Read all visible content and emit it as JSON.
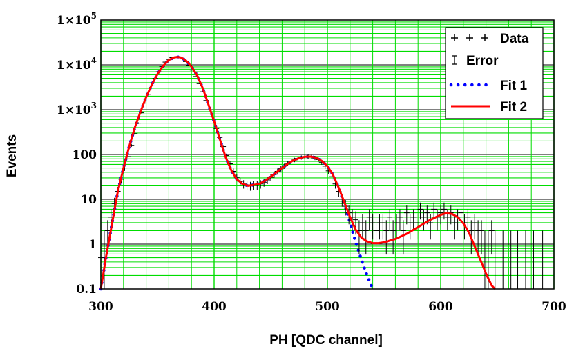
{
  "chart_data": {
    "type": "scatter",
    "title": "",
    "xlabel": "PH [QDC channel]",
    "ylabel": "Events",
    "xlim": [
      300,
      700
    ],
    "ylim": [
      0.1,
      100000
    ],
    "y_scale": "log",
    "grid": true,
    "legend_position": "top-right",
    "x_ticks": [
      "300",
      "400",
      "500",
      "600",
      "700"
    ],
    "y_ticks": [
      {
        "value": 0.1,
        "label": "0.1"
      },
      {
        "value": 1,
        "label": "1"
      },
      {
        "value": 10,
        "label": "10"
      },
      {
        "value": 100,
        "label": "100"
      },
      {
        "value": 1000,
        "label": "1×10",
        "exp": "3"
      },
      {
        "value": 10000,
        "label": "1×10",
        "exp": "4"
      },
      {
        "value": 100000,
        "label": "1×10",
        "exp": "5"
      }
    ],
    "legend": [
      {
        "key": "data",
        "label": "Data"
      },
      {
        "key": "error",
        "label": "Error"
      },
      {
        "key": "fit1",
        "label": "Fit 1"
      },
      {
        "key": "fit2",
        "label": "Fit 2"
      }
    ],
    "colors": {
      "grid": "#00dd00",
      "data": "#000000",
      "fit1": "#0000ff",
      "fit2": "#ff0000"
    },
    "series": [
      {
        "name": "Data",
        "points": [
          [
            300,
            0.5
          ],
          [
            303,
            1.0
          ],
          [
            306,
            2.0
          ],
          [
            309,
            4.0
          ],
          [
            312,
            8.0
          ],
          [
            315,
            15
          ],
          [
            318,
            28
          ],
          [
            321,
            50
          ],
          [
            324,
            90
          ],
          [
            327,
            160
          ],
          [
            330,
            290
          ],
          [
            333,
            500
          ],
          [
            336,
            850
          ],
          [
            339,
            1400
          ],
          [
            342,
            2200
          ],
          [
            345,
            3400
          ],
          [
            348,
            5000
          ],
          [
            351,
            7000
          ],
          [
            354,
            9200
          ],
          [
            357,
            11500
          ],
          [
            360,
            13200
          ],
          [
            363,
            14500
          ],
          [
            366,
            15000
          ],
          [
            369,
            14600
          ],
          [
            372,
            13500
          ],
          [
            375,
            11800
          ],
          [
            378,
            9800
          ],
          [
            381,
            7600
          ],
          [
            384,
            5500
          ],
          [
            387,
            3800
          ],
          [
            390,
            2500
          ],
          [
            393,
            1600
          ],
          [
            396,
            1000
          ],
          [
            399,
            620
          ],
          [
            402,
            380
          ],
          [
            405,
            240
          ],
          [
            408,
            150
          ],
          [
            411,
            95
          ],
          [
            414,
            62
          ],
          [
            417,
            42
          ],
          [
            420,
            31
          ],
          [
            423,
            25
          ],
          [
            426,
            22
          ],
          [
            429,
            21
          ],
          [
            432,
            20
          ],
          [
            435,
            21
          ],
          [
            438,
            21
          ],
          [
            441,
            22
          ],
          [
            444,
            24
          ],
          [
            447,
            27
          ],
          [
            450,
            31
          ],
          [
            453,
            36
          ],
          [
            456,
            42
          ],
          [
            459,
            48
          ],
          [
            462,
            55
          ],
          [
            465,
            63
          ],
          [
            468,
            70
          ],
          [
            471,
            76
          ],
          [
            474,
            82
          ],
          [
            477,
            86
          ],
          [
            480,
            89
          ],
          [
            483,
            90
          ],
          [
            486,
            88
          ],
          [
            489,
            84
          ],
          [
            492,
            77
          ],
          [
            495,
            67
          ],
          [
            498,
            55
          ],
          [
            501,
            43
          ],
          [
            504,
            32
          ],
          [
            507,
            22
          ],
          [
            510,
            15
          ],
          [
            513,
            10
          ],
          [
            516,
            7
          ],
          [
            519,
            5
          ],
          [
            522,
            4
          ],
          [
            525,
            3.5
          ],
          [
            528,
            2
          ],
          [
            531,
            3
          ],
          [
            534,
            2
          ],
          [
            537,
            4
          ],
          [
            540,
            3
          ],
          [
            543,
            2
          ],
          [
            546,
            3
          ],
          [
            549,
            3
          ],
          [
            552,
            2
          ],
          [
            555,
            4
          ],
          [
            558,
            2
          ],
          [
            561,
            3
          ],
          [
            564,
            4
          ],
          [
            567,
            2
          ],
          [
            570,
            5
          ],
          [
            573,
            3
          ],
          [
            576,
            4
          ],
          [
            579,
            3
          ],
          [
            582,
            6
          ],
          [
            585,
            4
          ],
          [
            588,
            5
          ],
          [
            591,
            3
          ],
          [
            594,
            6
          ],
          [
            597,
            4
          ],
          [
            600,
            5
          ],
          [
            603,
            6
          ],
          [
            606,
            4
          ],
          [
            609,
            5
          ],
          [
            612,
            3
          ],
          [
            615,
            4
          ],
          [
            618,
            5
          ],
          [
            621,
            3
          ],
          [
            624,
            4
          ],
          [
            627,
            2
          ],
          [
            630,
            3
          ],
          [
            633,
            2
          ],
          [
            636,
            2
          ],
          [
            639,
            1
          ],
          [
            642,
            1
          ],
          [
            645,
            2
          ],
          [
            648,
            1
          ],
          [
            655,
            1
          ],
          [
            662,
            1
          ],
          [
            668,
            1
          ],
          [
            675,
            1
          ],
          [
            682,
            1
          ],
          [
            690,
            1
          ]
        ]
      },
      {
        "name": "Fit 1",
        "points": [
          [
            300,
            0.1
          ],
          [
            305,
            0.6
          ],
          [
            310,
            3
          ],
          [
            315,
            15
          ],
          [
            320,
            50
          ],
          [
            325,
            150
          ],
          [
            330,
            400
          ],
          [
            335,
            900
          ],
          [
            340,
            1900
          ],
          [
            345,
            3600
          ],
          [
            350,
            6200
          ],
          [
            355,
            9500
          ],
          [
            360,
            12800
          ],
          [
            365,
            14700
          ],
          [
            368,
            15000
          ],
          [
            371,
            14500
          ],
          [
            375,
            12500
          ],
          [
            380,
            9200
          ],
          [
            385,
            5800
          ],
          [
            390,
            3000
          ],
          [
            395,
            1300
          ],
          [
            400,
            550
          ],
          [
            405,
            220
          ],
          [
            410,
            90
          ],
          [
            415,
            45
          ],
          [
            420,
            28
          ],
          [
            425,
            22
          ],
          [
            430,
            20
          ],
          [
            435,
            21
          ],
          [
            440,
            22
          ],
          [
            445,
            26
          ],
          [
            450,
            32
          ],
          [
            455,
            40
          ],
          [
            460,
            50
          ],
          [
            465,
            62
          ],
          [
            470,
            74
          ],
          [
            475,
            83
          ],
          [
            480,
            89
          ],
          [
            485,
            90
          ],
          [
            490,
            85
          ],
          [
            495,
            72
          ],
          [
            500,
            55
          ],
          [
            505,
            35
          ],
          [
            510,
            18
          ],
          [
            515,
            8
          ],
          [
            520,
            3
          ],
          [
            525,
            1.1
          ],
          [
            530,
            0.45
          ],
          [
            535,
            0.2
          ],
          [
            540,
            0.1
          ]
        ]
      },
      {
        "name": "Fit 2",
        "points": [
          [
            300,
            0.1
          ],
          [
            305,
            0.6
          ],
          [
            310,
            3
          ],
          [
            315,
            15
          ],
          [
            320,
            50
          ],
          [
            325,
            150
          ],
          [
            330,
            400
          ],
          [
            335,
            900
          ],
          [
            340,
            1900
          ],
          [
            345,
            3600
          ],
          [
            350,
            6200
          ],
          [
            355,
            9500
          ],
          [
            360,
            12800
          ],
          [
            365,
            14700
          ],
          [
            368,
            15000
          ],
          [
            371,
            14500
          ],
          [
            375,
            12500
          ],
          [
            380,
            9200
          ],
          [
            385,
            5800
          ],
          [
            390,
            3000
          ],
          [
            395,
            1300
          ],
          [
            400,
            550
          ],
          [
            405,
            220
          ],
          [
            410,
            90
          ],
          [
            415,
            45
          ],
          [
            420,
            28
          ],
          [
            425,
            22
          ],
          [
            430,
            20
          ],
          [
            435,
            21
          ],
          [
            440,
            22
          ],
          [
            445,
            26
          ],
          [
            450,
            32
          ],
          [
            455,
            40
          ],
          [
            460,
            50
          ],
          [
            465,
            62
          ],
          [
            470,
            74
          ],
          [
            475,
            83
          ],
          [
            480,
            89
          ],
          [
            485,
            90
          ],
          [
            490,
            85
          ],
          [
            495,
            72
          ],
          [
            500,
            55
          ],
          [
            505,
            35
          ],
          [
            510,
            18
          ],
          [
            515,
            8.5
          ],
          [
            520,
            4
          ],
          [
            525,
            2.1
          ],
          [
            530,
            1.4
          ],
          [
            535,
            1.15
          ],
          [
            540,
            1.05
          ],
          [
            545,
            1.05
          ],
          [
            550,
            1.1
          ],
          [
            560,
            1.3
          ],
          [
            570,
            1.7
          ],
          [
            580,
            2.4
          ],
          [
            590,
            3.4
          ],
          [
            600,
            4.5
          ],
          [
            605,
            4.9
          ],
          [
            610,
            4.7
          ],
          [
            615,
            4.0
          ],
          [
            620,
            2.9
          ],
          [
            625,
            1.8
          ],
          [
            630,
            0.9
          ],
          [
            635,
            0.45
          ],
          [
            640,
            0.22
          ],
          [
            645,
            0.12
          ],
          [
            648,
            0.1
          ]
        ]
      }
    ]
  }
}
